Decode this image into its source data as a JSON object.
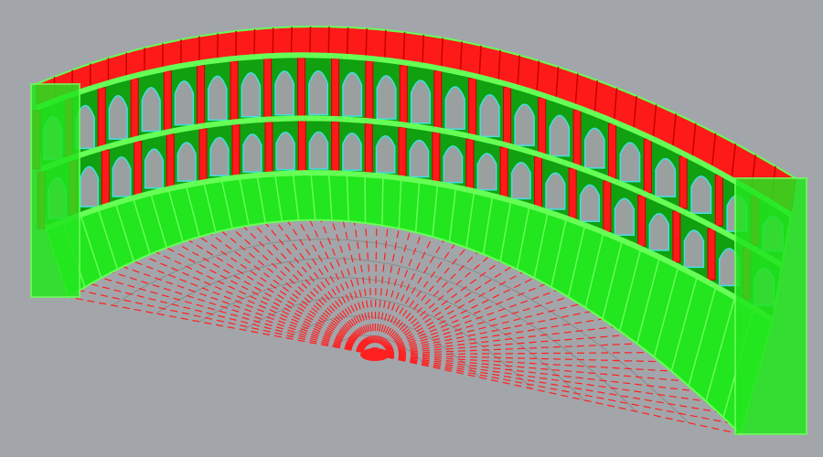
{
  "viewport": {
    "background": "#a2a6aa",
    "colors": {
      "red": "#ff1a1a",
      "dark_red": "#c80000",
      "green": "#22e61e",
      "light_green": "#66ff55",
      "dark_green": "#10a010",
      "cyan": "#40e0e0",
      "floor_line": "#ff2020",
      "floor_ring": "#8a8a8a"
    },
    "pillar_count": 22,
    "radial_line_count": 60,
    "ring_count": 7
  }
}
